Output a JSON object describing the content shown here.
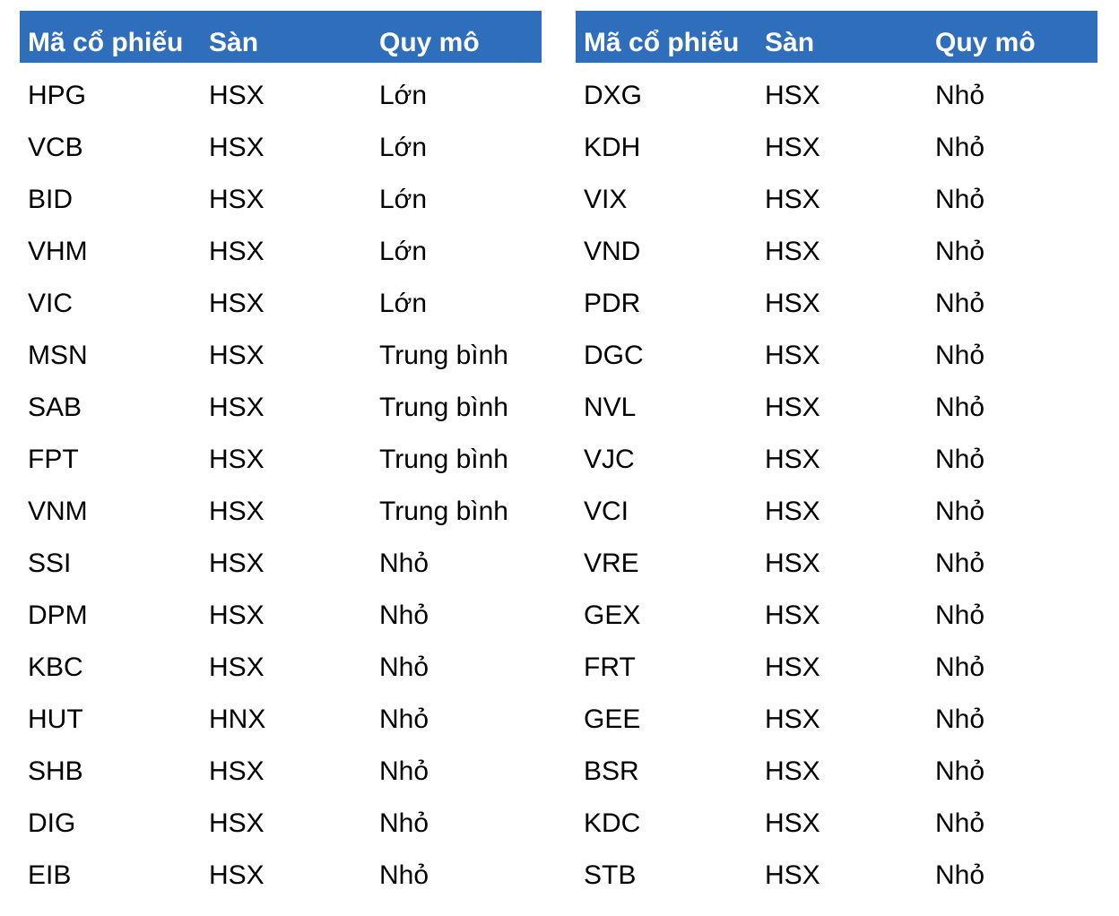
{
  "header_color": "#2F6EBA",
  "tables": [
    {
      "headers": [
        "Mã cổ phiếu",
        "Sàn",
        "Quy mô"
      ],
      "rows": [
        [
          "HPG",
          "HSX",
          "Lớn"
        ],
        [
          "VCB",
          "HSX",
          "Lớn"
        ],
        [
          "BID",
          "HSX",
          "Lớn"
        ],
        [
          "VHM",
          "HSX",
          "Lớn"
        ],
        [
          "VIC",
          "HSX",
          "Lớn"
        ],
        [
          "MSN",
          "HSX",
          "Trung bình"
        ],
        [
          "SAB",
          "HSX",
          "Trung bình"
        ],
        [
          "FPT",
          "HSX",
          "Trung bình"
        ],
        [
          "VNM",
          "HSX",
          "Trung bình"
        ],
        [
          "SSI",
          "HSX",
          "Nhỏ"
        ],
        [
          "DPM",
          "HSX",
          "Nhỏ"
        ],
        [
          "KBC",
          "HSX",
          "Nhỏ"
        ],
        [
          "HUT",
          "HNX",
          "Nhỏ"
        ],
        [
          "SHB",
          "HSX",
          "Nhỏ"
        ],
        [
          "DIG",
          "HSX",
          "Nhỏ"
        ],
        [
          "EIB",
          "HSX",
          "Nhỏ"
        ]
      ]
    },
    {
      "headers": [
        "Mã cổ phiếu",
        "Sàn",
        "Quy mô"
      ],
      "rows": [
        [
          "DXG",
          "HSX",
          "Nhỏ"
        ],
        [
          "KDH",
          "HSX",
          "Nhỏ"
        ],
        [
          "VIX",
          "HSX",
          "Nhỏ"
        ],
        [
          "VND",
          "HSX",
          "Nhỏ"
        ],
        [
          "PDR",
          "HSX",
          "Nhỏ"
        ],
        [
          "DGC",
          "HSX",
          "Nhỏ"
        ],
        [
          "NVL",
          "HSX",
          "Nhỏ"
        ],
        [
          "VJC",
          "HSX",
          "Nhỏ"
        ],
        [
          "VCI",
          "HSX",
          "Nhỏ"
        ],
        [
          "VRE",
          "HSX",
          "Nhỏ"
        ],
        [
          "GEX",
          "HSX",
          "Nhỏ"
        ],
        [
          "FRT",
          "HSX",
          "Nhỏ"
        ],
        [
          "GEE",
          "HSX",
          "Nhỏ"
        ],
        [
          "BSR",
          "HSX",
          "Nhỏ"
        ],
        [
          "KDC",
          "HSX",
          "Nhỏ"
        ],
        [
          "STB",
          "HSX",
          "Nhỏ"
        ]
      ]
    }
  ]
}
